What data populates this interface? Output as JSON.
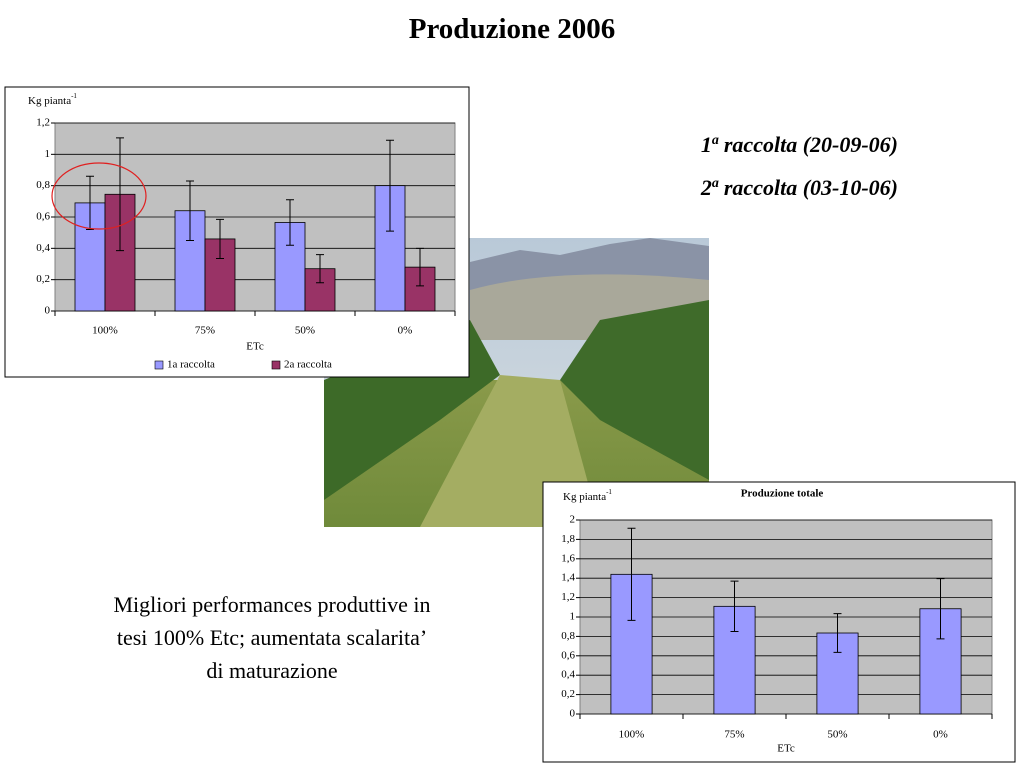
{
  "title": "Produzione 2006",
  "harvests": [
    {
      "number": "1",
      "sup": "a",
      "text": "raccolta (20-09-06)"
    },
    {
      "number": "2",
      "sup": "a",
      "text": "raccolta (03-10-06)"
    }
  ],
  "caption": [
    "Migliori performances produttive in",
    "tesi 100% Etc; aumentata scalarita’",
    "di maturazione"
  ],
  "chart_data": [
    {
      "type": "bar",
      "y_label": "Kg pianta",
      "y_label_sup": "-1",
      "x_label": "ETc",
      "categories": [
        "100%",
        "75%",
        "50%",
        "0%"
      ],
      "series": [
        {
          "name": "1a raccolta",
          "color": "#9999ff",
          "values": [
            0.69,
            0.64,
            0.565,
            0.8
          ],
          "errors": [
            0.17,
            0.19,
            0.145,
            0.29
          ]
        },
        {
          "name": "2a raccolta",
          "color": "#993366",
          "values": [
            0.745,
            0.46,
            0.27,
            0.28
          ],
          "errors": [
            0.36,
            0.125,
            0.09,
            0.12
          ]
        }
      ],
      "ylim": [
        0,
        1.2
      ],
      "yticks": [
        0,
        {
          "value": 0.2,
          "label": "0,2"
        },
        {
          "value": 0.4,
          "label": "0,4"
        },
        {
          "value": 0.6,
          "label": "0,6"
        },
        {
          "value": 0.8,
          "label": "0,8"
        },
        1,
        {
          "value": 1.2,
          "label": "1,2"
        }
      ],
      "grid": true,
      "legend": "bottom"
    },
    {
      "type": "bar",
      "title": "Produzione totale",
      "y_label": "Kg pianta",
      "y_label_sup": "-1",
      "x_label": "ETc",
      "categories": [
        "100%",
        "75%",
        "50%",
        "0%"
      ],
      "series": [
        {
          "color": "#9999ff",
          "values": [
            1.44,
            1.11,
            0.835,
            1.085
          ],
          "errors": [
            0.475,
            0.26,
            0.2,
            0.31
          ]
        }
      ],
      "ylim": [
        0,
        2
      ],
      "yticks": [
        0,
        {
          "value": 0.2,
          "label": "0,2"
        },
        {
          "value": 0.4,
          "label": "0,4"
        },
        {
          "value": 0.6,
          "label": "0,6"
        },
        {
          "value": 0.8,
          "label": "0,8"
        },
        1,
        {
          "value": 1.2,
          "label": "1,2"
        },
        {
          "value": 1.4,
          "label": "1,4"
        },
        {
          "value": 1.6,
          "label": "1,6"
        },
        {
          "value": 1.8,
          "label": "1,8"
        },
        2
      ],
      "grid": true
    }
  ]
}
